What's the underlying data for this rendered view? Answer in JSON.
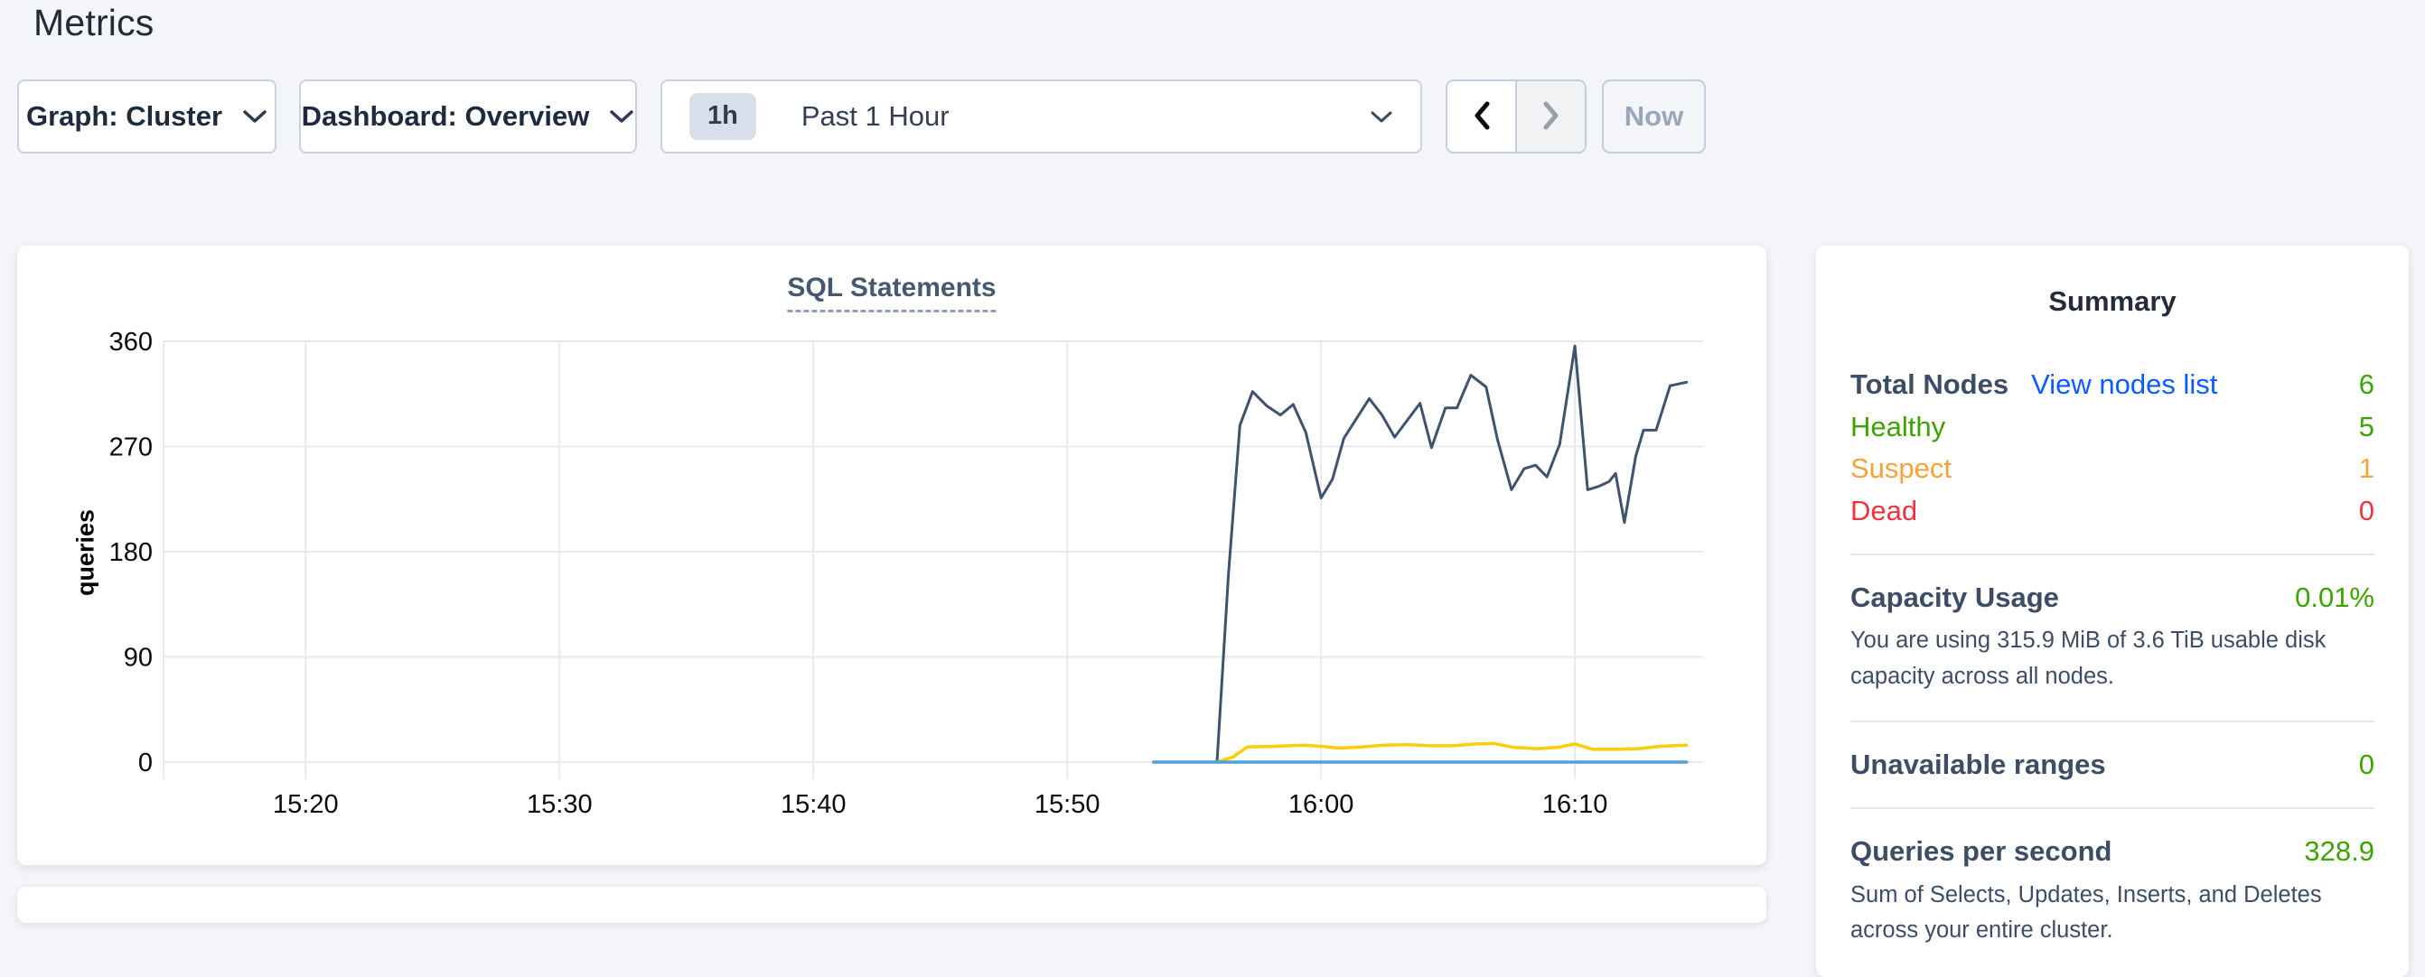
{
  "page": {
    "title": "Metrics"
  },
  "toolbar": {
    "graph_dropdown": "Graph: Cluster",
    "dashboard_dropdown": "Dashboard: Overview",
    "time_badge": "1h",
    "time_label": "Past 1 Hour",
    "now_label": "Now"
  },
  "summary": {
    "title": "Summary",
    "total_nodes_label": "Total Nodes",
    "view_nodes_link": "View nodes list",
    "total_nodes_value": "6",
    "healthy_label": "Healthy",
    "healthy_value": "5",
    "suspect_label": "Suspect",
    "suspect_value": "1",
    "dead_label": "Dead",
    "dead_value": "0",
    "capacity_label": "Capacity Usage",
    "capacity_value": "0.01%",
    "capacity_desc": "You are using 315.9 MiB of 3.6 TiB usable disk capacity across all nodes.",
    "unavailable_label": "Unavailable ranges",
    "unavailable_value": "0",
    "qps_label": "Queries per second",
    "qps_value": "328.9",
    "qps_desc": "Sum of Selects, Updates, Inserts, and Deletes across your entire cluster."
  },
  "colors": {
    "link_blue": "#0b5cff",
    "status_green": "#3da300",
    "status_orange": "#f9a23a",
    "status_red": "#ef3340",
    "gridline": "#e9eaee",
    "tick_text": "#0b0b0b"
  },
  "chart_data": {
    "type": "line",
    "title": "SQL Statements",
    "xlabel": "",
    "ylabel": "queries",
    "y_domain": [
      0,
      360
    ],
    "x_domain": [
      914.4,
      975.05
    ],
    "y_ticks": [
      0,
      90,
      180,
      270,
      360
    ],
    "x_ticks": [
      {
        "label": "15:20",
        "t": 920
      },
      {
        "label": "15:30",
        "t": 930
      },
      {
        "label": "15:40",
        "t": 940
      },
      {
        "label": "15:50",
        "t": 950
      },
      {
        "label": "16:00",
        "t": 960
      },
      {
        "label": "16:10",
        "t": 970
      }
    ],
    "grid": true,
    "legend": "none",
    "series": [
      {
        "name": "navy",
        "color": "#3f536f",
        "points": [
          [
            955.9,
            0
          ],
          [
            956.35,
            160
          ],
          [
            956.8,
            288
          ],
          [
            957.3,
            317
          ],
          [
            957.85,
            305
          ],
          [
            958.4,
            297
          ],
          [
            958.9,
            306
          ],
          [
            959.4,
            282
          ],
          [
            960.0,
            226
          ],
          [
            960.45,
            242
          ],
          [
            960.9,
            277
          ],
          [
            961.9,
            311
          ],
          [
            962.4,
            297
          ],
          [
            962.9,
            278
          ],
          [
            963.9,
            307
          ],
          [
            964.35,
            269
          ],
          [
            964.9,
            303
          ],
          [
            965.35,
            303
          ],
          [
            965.9,
            331
          ],
          [
            966.5,
            321
          ],
          [
            966.95,
            276
          ],
          [
            967.5,
            233
          ],
          [
            968.0,
            251
          ],
          [
            968.45,
            254
          ],
          [
            968.9,
            244
          ],
          [
            969.4,
            272
          ],
          [
            970.0,
            356
          ],
          [
            970.5,
            233
          ],
          [
            970.95,
            236
          ],
          [
            971.35,
            240
          ],
          [
            971.6,
            247
          ],
          [
            971.95,
            205
          ],
          [
            972.4,
            262
          ],
          [
            972.7,
            284
          ],
          [
            973.2,
            284
          ],
          [
            973.75,
            322
          ],
          [
            974.4,
            325
          ]
        ]
      },
      {
        "name": "yellow",
        "color": "#fdcd06",
        "points": [
          [
            955.9,
            0
          ],
          [
            956.5,
            4
          ],
          [
            957.1,
            13
          ],
          [
            958.2,
            13.5
          ],
          [
            959.3,
            14.5
          ],
          [
            960.0,
            13.5
          ],
          [
            960.7,
            12
          ],
          [
            961.6,
            13
          ],
          [
            962.5,
            14.5
          ],
          [
            963.4,
            15
          ],
          [
            964.3,
            14
          ],
          [
            965.2,
            14
          ],
          [
            966.1,
            15.5
          ],
          [
            966.8,
            16
          ],
          [
            967.6,
            12.5
          ],
          [
            968.5,
            11.5
          ],
          [
            969.3,
            12.5
          ],
          [
            970.0,
            15.5
          ],
          [
            970.7,
            11
          ],
          [
            971.6,
            11
          ],
          [
            972.5,
            11.5
          ],
          [
            973.4,
            13.5
          ],
          [
            974.4,
            14.5
          ]
        ]
      },
      {
        "name": "blue",
        "color": "#519fd7",
        "points": [
          [
            953.4,
            0
          ],
          [
            974.4,
            0
          ]
        ]
      }
    ]
  }
}
